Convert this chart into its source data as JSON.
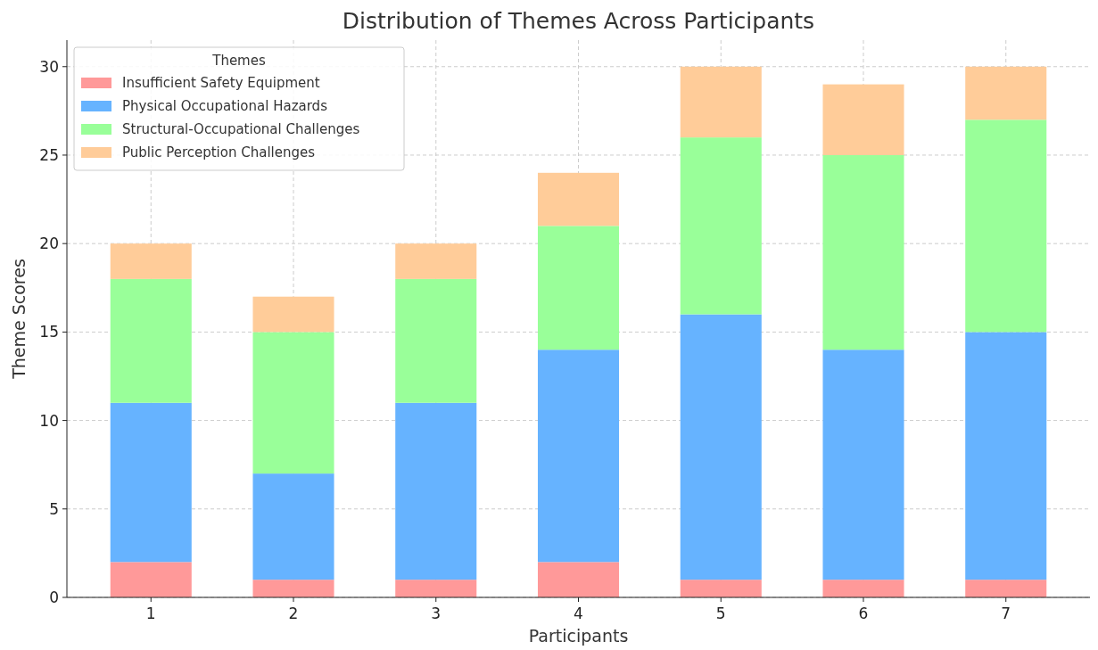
{
  "chart_data": {
    "type": "bar",
    "title": "Distribution of Themes Across Participants",
    "xlabel": "Participants",
    "ylabel": "Theme Scores",
    "legend_title": "Themes",
    "categories": [
      "1",
      "2",
      "3",
      "4",
      "5",
      "6",
      "7"
    ],
    "stacked": true,
    "series": [
      {
        "name": "Insufficient Safety Equipment",
        "color": "#ff9999",
        "values": [
          2,
          1,
          1,
          2,
          1,
          1,
          1
        ]
      },
      {
        "name": "Physical Occupational Hazards",
        "color": "#66b3ff",
        "values": [
          9,
          6,
          10,
          12,
          15,
          13,
          14
        ]
      },
      {
        "name": "Structural-Occupational Challenges",
        "color": "#99ff99",
        "values": [
          7,
          8,
          7,
          7,
          10,
          11,
          12
        ]
      },
      {
        "name": "Public Perception Challenges",
        "color": "#ffcc99",
        "values": [
          2,
          2,
          2,
          3,
          4,
          4,
          3
        ]
      }
    ],
    "ylim": [
      0,
      31.5
    ],
    "yticks": [
      0,
      5,
      10,
      15,
      20,
      25,
      30
    ],
    "grid": true,
    "legend": "top left"
  }
}
